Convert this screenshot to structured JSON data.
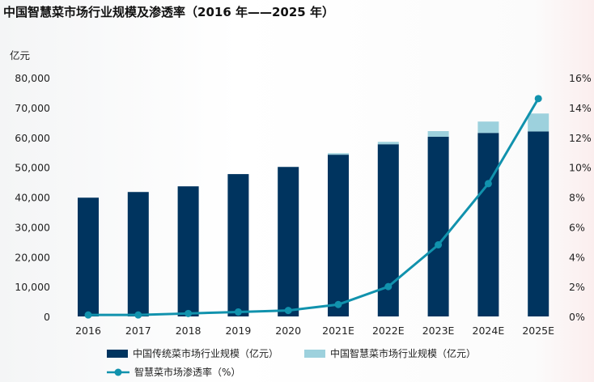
{
  "chart_data": {
    "type": "bar",
    "title": "中国智慧菜市场行业规模及渗透率（2016 年——2025 年）",
    "ylabel": "亿元",
    "ylim": [
      0,
      80000
    ],
    "y2lim": [
      0,
      16
    ],
    "yticks": [
      "0",
      "10,000",
      "20,000",
      "30,000",
      "40,000",
      "50,000",
      "60,000",
      "70,000",
      "80,000"
    ],
    "y2ticks": [
      "0%",
      "2%",
      "4%",
      "6%",
      "8%",
      "10%",
      "12%",
      "14%",
      "16%"
    ],
    "categories": [
      "2016",
      "2017",
      "2018",
      "2019",
      "2020",
      "2021E",
      "2022E",
      "2023E",
      "2024E",
      "2025E"
    ],
    "stacked": true,
    "grid": false,
    "legend_position": "bottom",
    "series": [
      {
        "name": "中国传统菜市场行业规模（亿元）",
        "type": "bar",
        "color": "#00345f",
        "values": [
          39800,
          41700,
          43600,
          47700,
          50100,
          54200,
          57700,
          60200,
          61500,
          62000
        ]
      },
      {
        "name": "中国智慧菜市场行业规模（亿元）",
        "type": "bar",
        "color": "#9dd1dd",
        "values": [
          0,
          0,
          0,
          0,
          0,
          500,
          800,
          1900,
          3800,
          6000
        ]
      },
      {
        "name": "智慧菜市场渗透率（%）",
        "type": "line",
        "axis": "right",
        "color": "#1192ad",
        "values": [
          0.1,
          0.1,
          0.2,
          0.3,
          0.4,
          0.8,
          2.0,
          4.8,
          8.9,
          14.6
        ]
      }
    ]
  }
}
